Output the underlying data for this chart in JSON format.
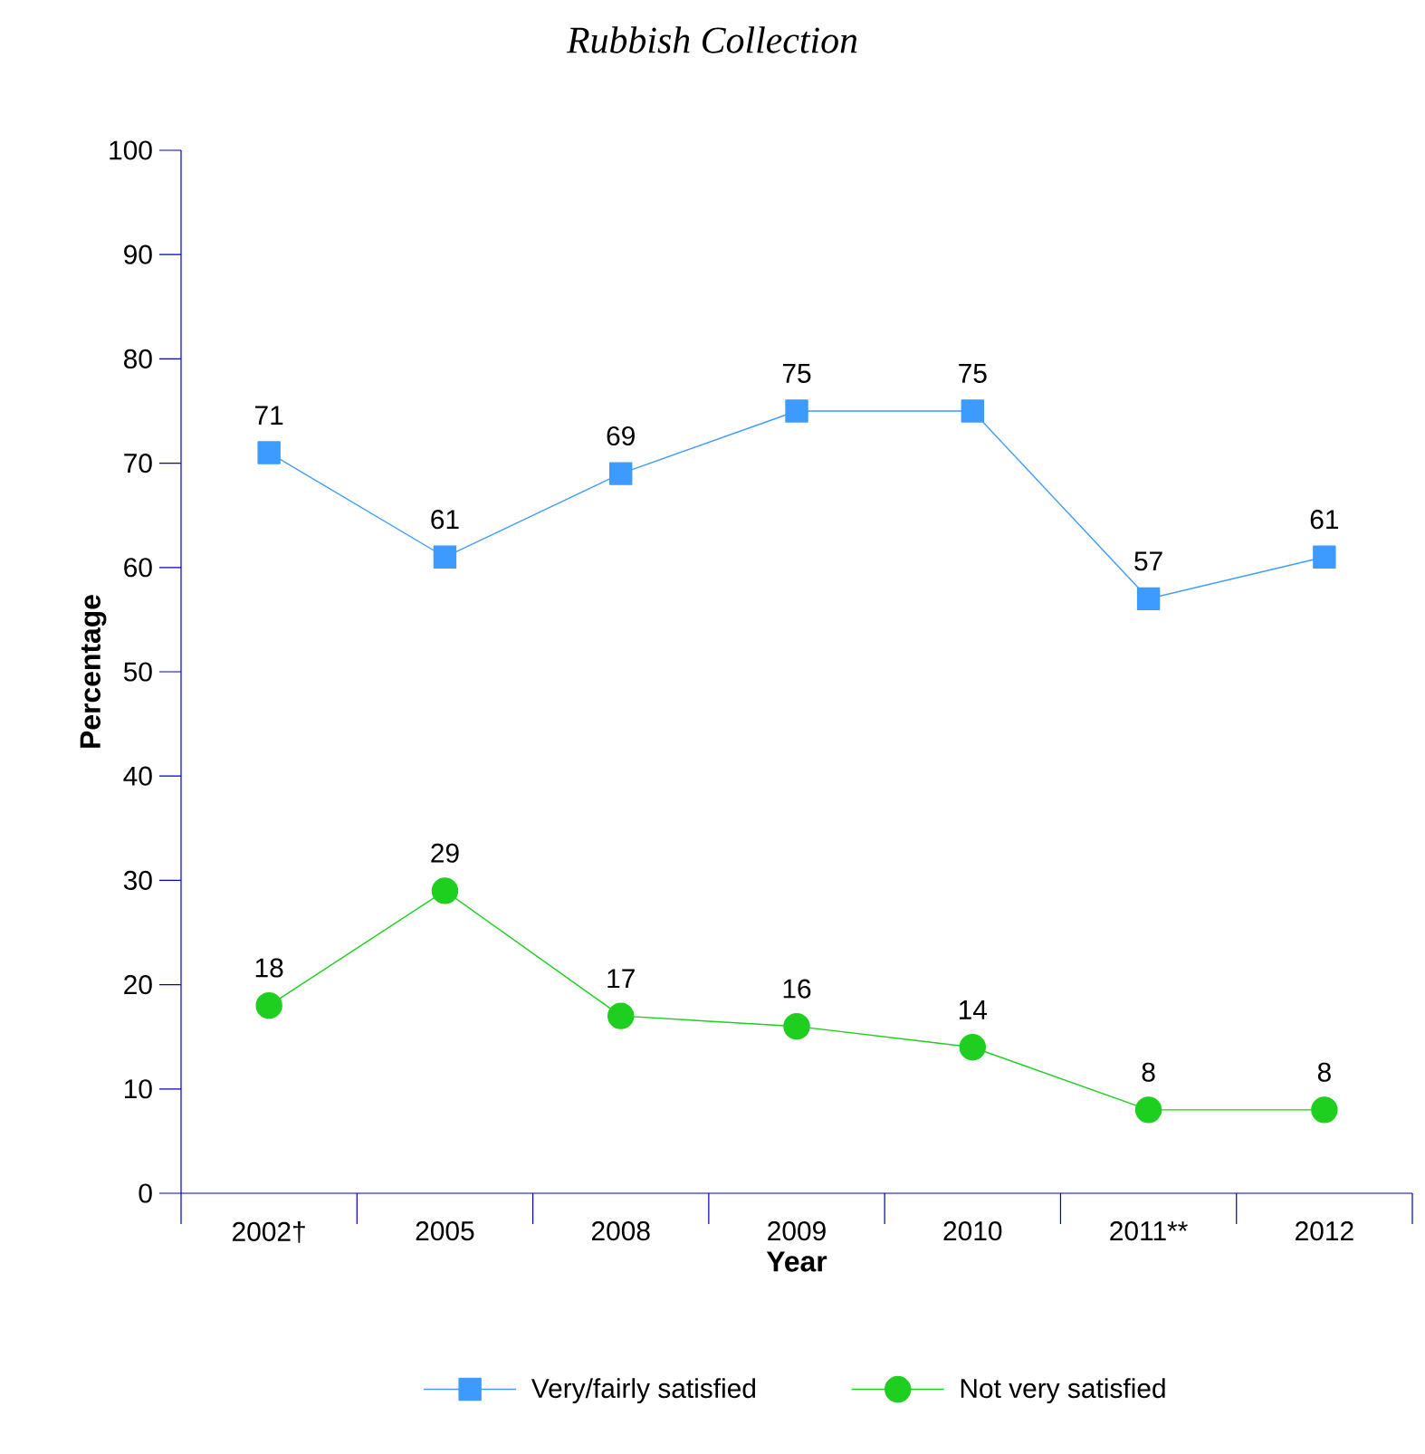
{
  "chart_data": {
    "type": "line",
    "title": "Rubbish Collection",
    "xlabel": "Year",
    "ylabel": "Percentage",
    "categories": [
      "2002†",
      "2005",
      "2008",
      "2009",
      "2010",
      "2011**",
      "2012"
    ],
    "series": [
      {
        "name": "Very/fairly satisfied",
        "color": "#3d9bff",
        "marker": "square",
        "values": [
          71,
          61,
          69,
          75,
          75,
          57,
          61
        ]
      },
      {
        "name": "Not very satisfied",
        "color": "#1fcf1f",
        "marker": "circle",
        "values": [
          18,
          29,
          17,
          16,
          14,
          8,
          8
        ]
      }
    ],
    "ylim": [
      0,
      100
    ],
    "yticks": [
      0,
      10,
      20,
      30,
      40,
      50,
      60,
      70,
      80,
      90,
      100
    ],
    "data_labels": true,
    "legend": "bottom",
    "grid": false,
    "line_style": "solid"
  }
}
